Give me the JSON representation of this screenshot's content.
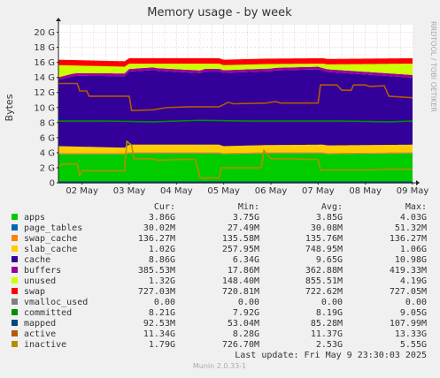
{
  "chart_data": {
    "type": "area",
    "title": "Memory usage - by week",
    "ylabel": "Bytes",
    "side_label": "RRDTOOL / TOBI OETIKER",
    "ylim": [
      0,
      21
    ],
    "y_ticks": [
      {
        "value": 0,
        "label": "0"
      },
      {
        "value": 2,
        "label": "2 G"
      },
      {
        "value": 4,
        "label": "4 G"
      },
      {
        "value": 6,
        "label": "6 G"
      },
      {
        "value": 8,
        "label": "8 G"
      },
      {
        "value": 10,
        "label": "10 G"
      },
      {
        "value": 12,
        "label": "12 G"
      },
      {
        "value": 14,
        "label": "14 G"
      },
      {
        "value": 16,
        "label": "16 G"
      },
      {
        "value": 18,
        "label": "18 G"
      },
      {
        "value": 20,
        "label": "20 G"
      }
    ],
    "x_range": [
      0,
      7.5
    ],
    "x_ticks": [
      {
        "value": 0.5,
        "label": "02 May"
      },
      {
        "value": 1.5,
        "label": "03 May"
      },
      {
        "value": 2.5,
        "label": "04 May"
      },
      {
        "value": 3.5,
        "label": "05 May"
      },
      {
        "value": 4.5,
        "label": "06 May"
      },
      {
        "value": 5.5,
        "label": "07 May"
      },
      {
        "value": 6.5,
        "label": "08 May"
      },
      {
        "value": 7.5,
        "label": "09 May"
      }
    ],
    "stack": [
      {
        "name": "apps",
        "color": "#00cc00",
        "x": [
          0,
          1.4,
          1.5,
          3.4,
          3.5,
          4.4,
          4.5,
          5.6,
          5.7,
          7.5
        ],
        "values": [
          3.8,
          3.8,
          3.9,
          3.9,
          3.8,
          3.9,
          3.9,
          3.9,
          3.8,
          3.9
        ]
      },
      {
        "name": "page_tables",
        "color": "#0066b3",
        "x": [
          0,
          7.5
        ],
        "values": [
          0.03,
          0.03
        ]
      },
      {
        "name": "swap_cache",
        "color": "#ff8000",
        "x": [
          0,
          7.5
        ],
        "values": [
          0.14,
          0.14
        ]
      },
      {
        "name": "slab_cache",
        "color": "#ffcc00",
        "x": [
          0,
          1.4,
          1.5,
          3.4,
          3.5,
          5.6,
          5.7,
          7.5
        ],
        "values": [
          0.9,
          0.7,
          1.0,
          1.0,
          0.9,
          1.0,
          1.0,
          1.0
        ]
      },
      {
        "name": "cache",
        "color": "#330099",
        "x": [
          0,
          0.3,
          0.4,
          1.4,
          1.5,
          2.0,
          2.1,
          3.0,
          3.1,
          4.5,
          4.6,
          5.5,
          5.6,
          7.5
        ],
        "values": [
          8.8,
          9.3,
          9.4,
          9.5,
          9.7,
          9.9,
          9.8,
          9.5,
          9.7,
          9.8,
          9.9,
          10.0,
          9.8,
          8.9
        ]
      },
      {
        "name": "buffers",
        "color": "#990099",
        "x": [
          0,
          7.5
        ],
        "values": [
          0.36,
          0.36
        ]
      },
      {
        "name": "unused",
        "color": "#ccff00",
        "x": [
          0,
          0.3,
          0.4,
          1.4,
          1.5,
          2.0,
          2.1,
          3.0,
          3.1,
          4.5,
          4.6,
          5.5,
          5.6,
          7.5
        ],
        "values": [
          1.6,
          1.1,
          1.0,
          0.9,
          0.7,
          0.5,
          0.6,
          0.9,
          0.7,
          0.6,
          0.5,
          0.4,
          0.6,
          1.5
        ]
      },
      {
        "name": "swap",
        "color": "#ff0000",
        "x": [
          0,
          7.5
        ],
        "values": [
          0.72,
          0.72
        ]
      }
    ],
    "lines": [
      {
        "name": "vmalloc_used",
        "color": "#808080",
        "x": [
          0,
          7.5
        ],
        "values": [
          0,
          0
        ]
      },
      {
        "name": "committed",
        "color": "#008f00",
        "x": [
          0,
          1.0,
          2.0,
          3.0,
          4.0,
          5.0,
          6.0,
          7.0,
          7.5
        ],
        "values": [
          8.2,
          8.2,
          8.1,
          8.3,
          8.2,
          8.2,
          8.2,
          8.1,
          8.2
        ]
      },
      {
        "name": "mapped",
        "color": "#00487d",
        "x": [
          0,
          7.5
        ],
        "values": [
          0.09,
          0.09
        ]
      },
      {
        "name": "active",
        "color": "#b35a00",
        "x": [
          0,
          0.4,
          0.45,
          0.6,
          0.65,
          1.5,
          1.55,
          2.0,
          2.3,
          2.8,
          3.4,
          3.6,
          3.7,
          4.4,
          4.6,
          4.7,
          5.0,
          5.5,
          5.55,
          5.9,
          6.0,
          6.2,
          6.25,
          6.5,
          6.6,
          6.9,
          7.0,
          7.5
        ],
        "values": [
          13.2,
          13.2,
          12.2,
          12.2,
          11.5,
          11.5,
          9.6,
          9.7,
          10.0,
          10.1,
          10.1,
          10.7,
          10.5,
          10.6,
          10.8,
          10.6,
          10.6,
          10.6,
          13.0,
          13.0,
          12.3,
          12.3,
          13.0,
          13.0,
          12.8,
          12.9,
          11.5,
          11.3
        ]
      },
      {
        "name": "inactive",
        "color": "#b38f00",
        "x": [
          0,
          0.1,
          0.4,
          0.45,
          0.5,
          1.4,
          1.45,
          1.55,
          1.6,
          2.0,
          2.1,
          2.5,
          2.9,
          3.0,
          3.1,
          3.2,
          3.4,
          3.45,
          4.3,
          4.35,
          4.5,
          5.0,
          5.2,
          5.5,
          5.55,
          5.9,
          6.5,
          7.0,
          7.5
        ],
        "values": [
          2.2,
          2.5,
          2.5,
          1.0,
          1.6,
          1.6,
          5.5,
          5.0,
          3.2,
          3.2,
          3.0,
          3.1,
          3.1,
          0.7,
          0.6,
          0.7,
          0.6,
          2.0,
          2.0,
          4.3,
          3.2,
          3.2,
          3.1,
          3.1,
          1.7,
          1.7,
          1.7,
          1.8,
          1.8
        ]
      }
    ]
  },
  "legend": {
    "headers": {
      "cur": "Cur:",
      "min": "Min:",
      "avg": "Avg:",
      "max": "Max:"
    },
    "rows": [
      {
        "name": "apps",
        "color": "#00cc00",
        "cur": "3.86G",
        "min": "3.75G",
        "avg": "3.85G",
        "max": "4.03G"
      },
      {
        "name": "page_tables",
        "color": "#0066b3",
        "cur": "30.02M",
        "min": "27.49M",
        "avg": "30.08M",
        "max": "51.32M"
      },
      {
        "name": "swap_cache",
        "color": "#ff8000",
        "cur": "136.27M",
        "min": "135.58M",
        "avg": "135.76M",
        "max": "136.27M"
      },
      {
        "name": "slab_cache",
        "color": "#ffcc00",
        "cur": "1.02G",
        "min": "257.95M",
        "avg": "748.95M",
        "max": "1.06G"
      },
      {
        "name": "cache",
        "color": "#330099",
        "cur": "8.86G",
        "min": "6.34G",
        "avg": "9.65G",
        "max": "10.98G"
      },
      {
        "name": "buffers",
        "color": "#990099",
        "cur": "385.53M",
        "min": "17.86M",
        "avg": "362.88M",
        "max": "419.33M"
      },
      {
        "name": "unused",
        "color": "#ccff00",
        "cur": "1.32G",
        "min": "148.40M",
        "avg": "855.51M",
        "max": "4.19G"
      },
      {
        "name": "swap",
        "color": "#ff0000",
        "cur": "727.03M",
        "min": "720.81M",
        "avg": "722.62M",
        "max": "727.05M"
      },
      {
        "name": "vmalloc_used",
        "color": "#808080",
        "cur": "0.00",
        "min": "0.00",
        "avg": "0.00",
        "max": "0.00"
      },
      {
        "name": "committed",
        "color": "#008f00",
        "cur": "8.21G",
        "min": "7.92G",
        "avg": "8.19G",
        "max": "9.05G"
      },
      {
        "name": "mapped",
        "color": "#00487d",
        "cur": "92.53M",
        "min": "53.04M",
        "avg": "85.28M",
        "max": "107.99M"
      },
      {
        "name": "active",
        "color": "#b35a00",
        "cur": "11.34G",
        "min": "8.28G",
        "avg": "11.37G",
        "max": "13.33G"
      },
      {
        "name": "inactive",
        "color": "#b38f00",
        "cur": "1.79G",
        "min": "726.70M",
        "avg": "2.53G",
        "max": "5.55G"
      }
    ]
  },
  "footer": {
    "last_update": "Last update:  Fri May  9 23:30:03 2025",
    "version": "Munin 2.0.33-1"
  }
}
